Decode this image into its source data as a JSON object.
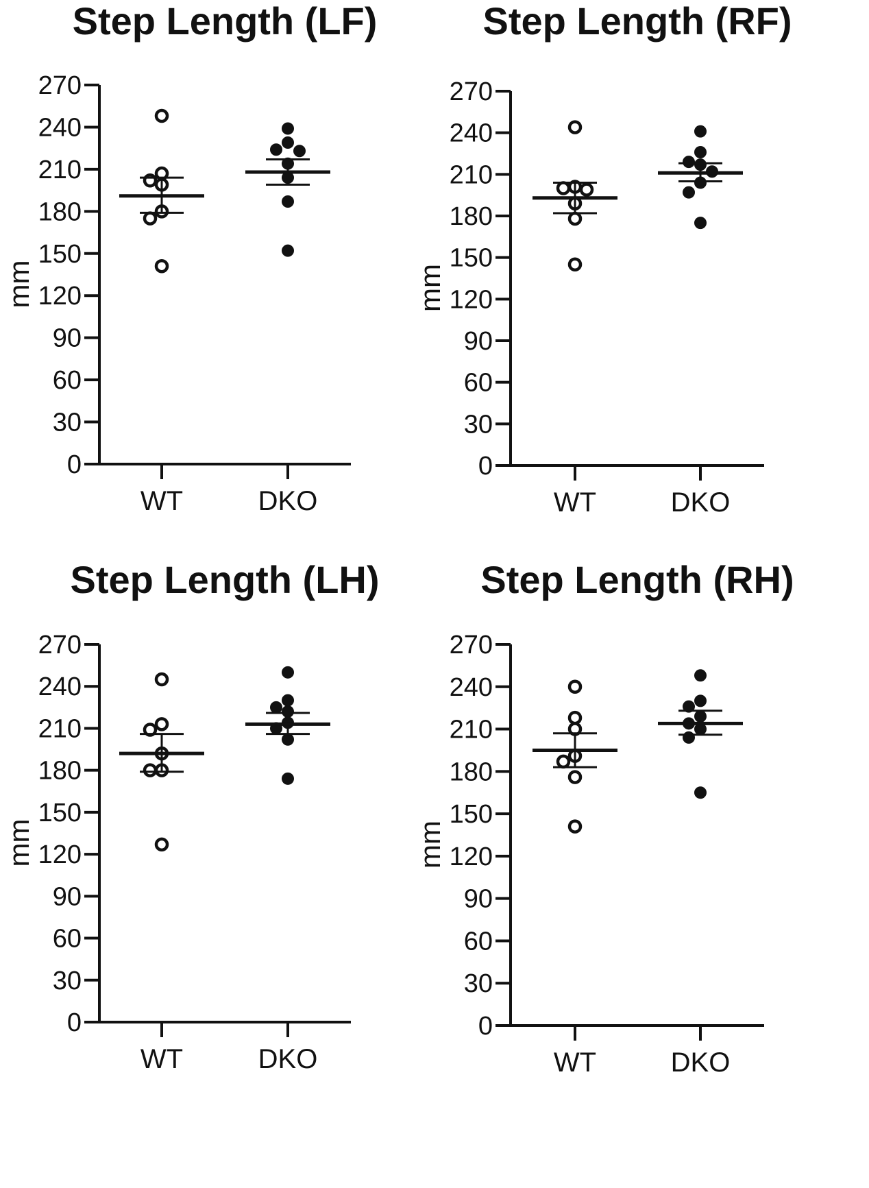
{
  "chart_data": [
    {
      "type": "scatter",
      "title": "Step Length (LF)",
      "xlabel": "",
      "ylabel": "mm",
      "ylim": [
        0,
        270
      ],
      "yticks": [
        0,
        30,
        60,
        90,
        120,
        150,
        180,
        210,
        240,
        270
      ],
      "categories": [
        "WT",
        "DKO"
      ],
      "series": [
        {
          "name": "WT",
          "marker": "open-circle",
          "values": [
            248,
            207,
            202,
            199,
            180,
            175,
            141
          ],
          "mean": 191,
          "sem_low": 179,
          "sem_high": 204
        },
        {
          "name": "DKO",
          "marker": "filled-circle",
          "values": [
            239,
            229,
            224,
            223,
            214,
            204,
            187,
            152
          ],
          "mean": 208,
          "sem_low": 199,
          "sem_high": 217
        }
      ]
    },
    {
      "type": "scatter",
      "title": "Step Length (RF)",
      "xlabel": "",
      "ylabel": "mm",
      "ylim": [
        0,
        270
      ],
      "yticks": [
        0,
        30,
        60,
        90,
        120,
        150,
        180,
        210,
        240,
        270
      ],
      "categories": [
        "WT",
        "DKO"
      ],
      "series": [
        {
          "name": "WT",
          "marker": "open-circle",
          "values": [
            244,
            201,
            200,
            199,
            189,
            178,
            145
          ],
          "mean": 193,
          "sem_low": 182,
          "sem_high": 204
        },
        {
          "name": "DKO",
          "marker": "filled-circle",
          "values": [
            241,
            226,
            219,
            217,
            212,
            204,
            197,
            175
          ],
          "mean": 211,
          "sem_low": 205,
          "sem_high": 218
        }
      ]
    },
    {
      "type": "scatter",
      "title": "Step Length (LH)",
      "xlabel": "",
      "ylabel": "mm",
      "ylim": [
        0,
        270
      ],
      "yticks": [
        0,
        30,
        60,
        90,
        120,
        150,
        180,
        210,
        240,
        270
      ],
      "categories": [
        "WT",
        "DKO"
      ],
      "series": [
        {
          "name": "WT",
          "marker": "open-circle",
          "values": [
            245,
            213,
            209,
            192,
            180,
            180,
            127
          ],
          "mean": 192,
          "sem_low": 179,
          "sem_high": 206
        },
        {
          "name": "DKO",
          "marker": "filled-circle",
          "values": [
            250,
            230,
            225,
            222,
            214,
            210,
            202,
            174
          ],
          "mean": 213,
          "sem_low": 206,
          "sem_high": 221
        }
      ]
    },
    {
      "type": "scatter",
      "title": "Step Length (RH)",
      "xlabel": "",
      "ylabel": "mm",
      "ylim": [
        0,
        270
      ],
      "yticks": [
        0,
        30,
        60,
        90,
        120,
        150,
        180,
        210,
        240,
        270
      ],
      "categories": [
        "WT",
        "DKO"
      ],
      "series": [
        {
          "name": "WT",
          "marker": "open-circle",
          "values": [
            240,
            218,
            210,
            191,
            187,
            176,
            141
          ],
          "mean": 195,
          "sem_low": 183,
          "sem_high": 207
        },
        {
          "name": "DKO",
          "marker": "filled-circle",
          "values": [
            248,
            230,
            226,
            219,
            214,
            210,
            204,
            165
          ],
          "mean": 214,
          "sem_low": 206,
          "sem_high": 223
        }
      ]
    }
  ]
}
